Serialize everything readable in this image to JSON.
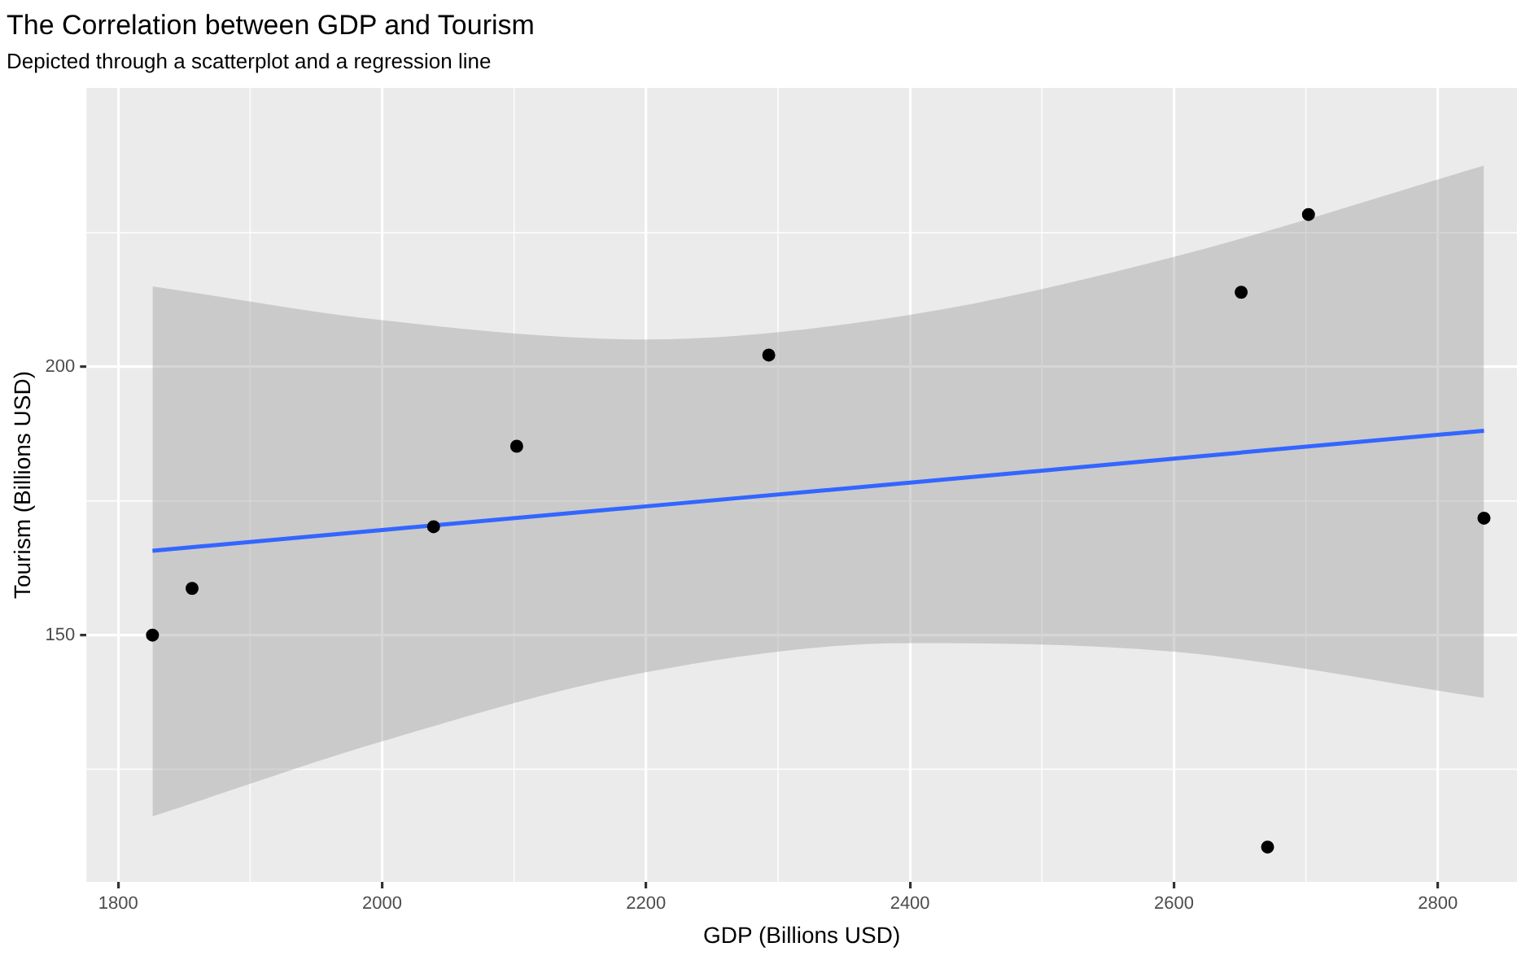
{
  "chart_data": {
    "type": "scatter",
    "title": "The Correlation between GDP and Tourism",
    "subtitle": "Depicted through a scatterplot and a regression line",
    "xlabel": "GDP (Billions USD)",
    "ylabel": "Tourism (Billions USD)",
    "x": [
      1826,
      1856,
      2039,
      2102,
      2293,
      2651,
      2702,
      2671,
      2835
    ],
    "series": [
      {
        "marker": "circle",
        "color": "#000000",
        "values": [
          150,
          158.7,
          170.2,
          185.2,
          202.2,
          213.9,
          228.4,
          110.5,
          171.8
        ]
      },
      {
        "type": "line",
        "marker": "none",
        "color": "#3366ff",
        "x": [
          1826,
          2000,
          2200,
          2400,
          2600,
          2835
        ],
        "values": [
          165.7,
          169.6,
          174.0,
          178.4,
          182.9,
          188.1
        ],
        "lower": [
          116.2,
          130.2,
          143.1,
          148.5,
          146.9,
          138.3
        ],
        "upper": [
          215.0,
          208.7,
          205.1,
          209.7,
          220.5,
          237.5
        ]
      }
    ],
    "xlim": [
      1776,
      2860
    ],
    "xticks": [
      1800,
      2000,
      2200,
      2400,
      2600,
      2800
    ],
    "ylim": [
      104,
      252
    ],
    "yticks": [
      150,
      200
    ],
    "grid": true,
    "legend": false,
    "line_style": "solid"
  }
}
